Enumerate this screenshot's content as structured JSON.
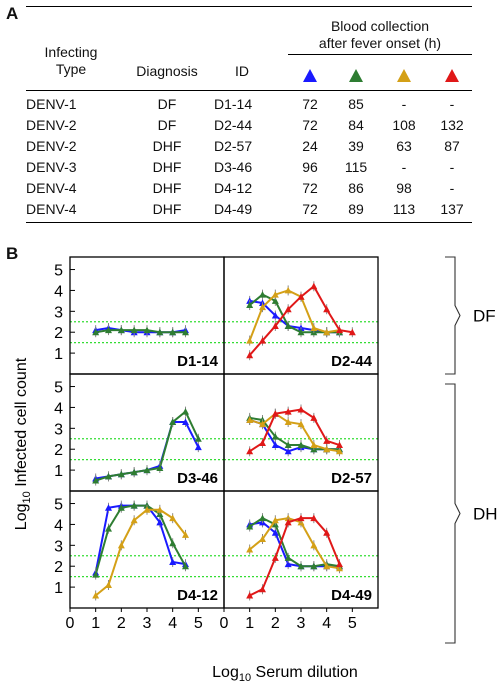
{
  "panel_a_label": "A",
  "panel_b_label": "B",
  "table": {
    "headers": {
      "type": [
        "Infecting",
        "Type"
      ],
      "diagnosis": "Diagnosis",
      "id": "ID",
      "blood": [
        "Blood collection",
        "after fever onset (h)"
      ]
    },
    "timepoint_colors": [
      "#1a1aff",
      "#2e7d32",
      "#d4a017",
      "#e01818"
    ],
    "rows": [
      {
        "type": "DENV-1",
        "diagnosis": "DF",
        "id": "D1-14",
        "times": [
          "72",
          "85",
          "-",
          "-"
        ]
      },
      {
        "type": "DENV-2",
        "diagnosis": "DF",
        "id": "D2-44",
        "times": [
          "72",
          "84",
          "108",
          "132"
        ]
      },
      {
        "type": "DENV-2",
        "diagnosis": "DHF",
        "id": "D2-57",
        "times": [
          "24",
          "39",
          "63",
          "87"
        ]
      },
      {
        "type": "DENV-3",
        "diagnosis": "DHF",
        "id": "D3-46",
        "times": [
          "96",
          "115",
          "-",
          "-"
        ]
      },
      {
        "type": "DENV-4",
        "diagnosis": "DHF",
        "id": "D4-12",
        "times": [
          "72",
          "86",
          "98",
          "-"
        ]
      },
      {
        "type": "DENV-4",
        "diagnosis": "DHF",
        "id": "D4-49",
        "times": [
          "72",
          "89",
          "113",
          "137"
        ]
      }
    ]
  },
  "chart_data": {
    "type": "line",
    "xlabel": "Log10 Serum dilution",
    "ylabel": "Log10 Infected cell count",
    "xlim": [
      0,
      6
    ],
    "ylim": [
      0,
      5.6
    ],
    "xticks": [
      "0",
      "1",
      "2",
      "3",
      "4",
      "5"
    ],
    "yticks": [
      "1",
      "2",
      "3",
      "4",
      "5"
    ],
    "reference_lines": [
      1.5,
      2.5
    ],
    "series_colors": [
      "#1a1aff",
      "#2e7d32",
      "#d4a017",
      "#e01818"
    ],
    "groups": [
      {
        "label": "DF",
        "panels": [
          "D1-14",
          "D2-44"
        ]
      },
      {
        "label": "DHF",
        "panels": [
          "D3-46",
          "D2-57",
          "D4-12",
          "D4-49"
        ]
      }
    ],
    "panels": [
      {
        "id": "D1-14",
        "series": [
          {
            "color": "#1a1aff",
            "x": [
              1,
              1.5,
              2,
              2.5,
              3,
              3.5,
              4,
              4.5
            ],
            "y": [
              2.1,
              2.2,
              2.1,
              2.0,
              2.0,
              2.0,
              2.0,
              2.1
            ]
          },
          {
            "color": "#2e7d32",
            "x": [
              1,
              1.5,
              2,
              2.5,
              3,
              3.5,
              4,
              4.5
            ],
            "y": [
              2.0,
              2.1,
              2.1,
              2.1,
              2.1,
              2.0,
              2.0,
              2.0
            ]
          }
        ]
      },
      {
        "id": "D2-44",
        "series": [
          {
            "color": "#1a1aff",
            "x": [
              1,
              1.5,
              2,
              2.5,
              3,
              3.5,
              4,
              4.5
            ],
            "y": [
              3.5,
              3.4,
              2.8,
              2.3,
              2.2,
              2.1,
              2.0,
              2.0
            ]
          },
          {
            "color": "#2e7d32",
            "x": [
              1,
              1.5,
              2,
              2.5,
              3,
              3.5,
              4,
              4.5
            ],
            "y": [
              3.3,
              3.8,
              3.5,
              2.3,
              2.0,
              2.0,
              2.0,
              2.0
            ]
          },
          {
            "color": "#d4a017",
            "x": [
              1,
              1.5,
              2,
              2.5,
              3,
              3.5,
              4,
              4.5
            ],
            "y": [
              1.6,
              3.2,
              3.8,
              4.0,
              3.7,
              2.2,
              2.0,
              2.1
            ]
          },
          {
            "color": "#e01818",
            "x": [
              1,
              1.5,
              2,
              2.5,
              3,
              3.5,
              4,
              4.5,
              5
            ],
            "y": [
              0.9,
              1.6,
              2.3,
              3.1,
              3.7,
              4.2,
              3.1,
              2.1,
              2.0
            ]
          }
        ]
      },
      {
        "id": "D3-46",
        "series": [
          {
            "color": "#1a1aff",
            "x": [
              1,
              1.5,
              2,
              2.5,
              3,
              3.5,
              4,
              4.5,
              5
            ],
            "y": [
              0.6,
              0.7,
              0.8,
              0.9,
              1.0,
              1.2,
              3.3,
              3.3,
              2.1
            ]
          },
          {
            "color": "#2e7d32",
            "x": [
              1,
              1.5,
              2,
              2.5,
              3,
              3.5,
              4,
              4.5,
              5
            ],
            "y": [
              0.5,
              0.7,
              0.8,
              0.9,
              1.0,
              1.1,
              3.3,
              3.8,
              2.5
            ]
          }
        ]
      },
      {
        "id": "D2-57",
        "series": [
          {
            "color": "#1a1aff",
            "x": [
              1,
              1.5,
              2,
              2.5,
              3,
              3.5,
              4,
              4.5
            ],
            "y": [
              3.4,
              3.2,
              2.2,
              1.9,
              2.1,
              2.0,
              2.0,
              2.0
            ]
          },
          {
            "color": "#2e7d32",
            "x": [
              1,
              1.5,
              2,
              2.5,
              3,
              3.5,
              4,
              4.5
            ],
            "y": [
              3.5,
              3.4,
              2.6,
              2.2,
              2.2,
              2.0,
              2.0,
              2.0
            ]
          },
          {
            "color": "#d4a017",
            "x": [
              1,
              1.5,
              2,
              2.5,
              3,
              3.5,
              4,
              4.5
            ],
            "y": [
              3.4,
              3.2,
              3.7,
              3.3,
              3.2,
              2.2,
              2.0,
              1.9
            ]
          },
          {
            "color": "#e01818",
            "x": [
              1,
              1.5,
              2,
              2.5,
              3,
              3.5,
              4,
              4.5
            ],
            "y": [
              1.9,
              2.3,
              3.7,
              3.8,
              3.9,
              3.5,
              2.4,
              2.2
            ]
          }
        ]
      },
      {
        "id": "D4-12",
        "series": [
          {
            "color": "#1a1aff",
            "x": [
              1,
              1.5,
              2,
              2.5,
              3,
              3.5,
              4,
              4.5
            ],
            "y": [
              1.7,
              4.8,
              4.9,
              4.9,
              4.9,
              4.1,
              2.2,
              2.1
            ]
          },
          {
            "color": "#2e7d32",
            "x": [
              1,
              1.5,
              2,
              2.5,
              3,
              3.5,
              4,
              4.5
            ],
            "y": [
              1.6,
              3.8,
              4.8,
              4.9,
              4.9,
              4.5,
              3.1,
              2.0
            ]
          },
          {
            "color": "#d4a017",
            "x": [
              1,
              1.5,
              2,
              2.5,
              3,
              3.5,
              4,
              4.5
            ],
            "y": [
              0.6,
              1.1,
              3.0,
              4.2,
              4.7,
              4.7,
              4.3,
              3.5
            ]
          }
        ]
      },
      {
        "id": "D4-49",
        "series": [
          {
            "color": "#1a1aff",
            "x": [
              1,
              1.5,
              2,
              2.5,
              3,
              3.5,
              4,
              4.5
            ],
            "y": [
              4.0,
              4.1,
              3.6,
              2.1,
              2.0,
              2.0,
              2.0,
              2.0
            ]
          },
          {
            "color": "#2e7d32",
            "x": [
              1,
              1.5,
              2,
              2.5,
              3,
              3.5,
              4,
              4.5
            ],
            "y": [
              3.9,
              4.3,
              4.0,
              2.4,
              2.0,
              2.0,
              2.1,
              2.0
            ]
          },
          {
            "color": "#d4a017",
            "x": [
              1,
              1.5,
              2,
              2.5,
              3,
              3.5,
              4,
              4.5
            ],
            "y": [
              2.8,
              3.3,
              4.2,
              4.3,
              4.1,
              3.0,
              2.0,
              1.9
            ]
          },
          {
            "color": "#e01818",
            "x": [
              1,
              1.5,
              2,
              2.5,
              3,
              3.5,
              4,
              4.5
            ],
            "y": [
              0.6,
              0.9,
              2.4,
              4.1,
              4.3,
              4.3,
              3.6,
              2.1
            ]
          }
        ]
      }
    ]
  }
}
